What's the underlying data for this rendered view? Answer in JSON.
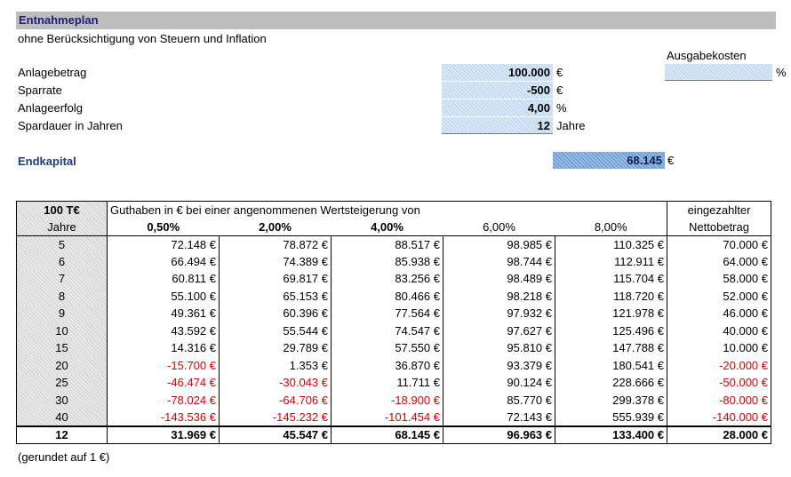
{
  "title": "Entnahmeplan",
  "subtitle": "ohne Berücksichtigung von Steuern und Inflation",
  "ausgabekosten": {
    "label": "Ausgabekosten",
    "value": "",
    "unit": "%"
  },
  "inputs": [
    {
      "label": "Anlagebetrag",
      "value": "100.000",
      "unit": "€"
    },
    {
      "label": "Sparrate",
      "value": "-500",
      "unit": "€"
    },
    {
      "label": "Anlageerfolg",
      "value": "4,00",
      "unit": "%"
    },
    {
      "label": "Spardauer in Jahren",
      "value": "12",
      "unit": "Jahre"
    }
  ],
  "endkapital": {
    "label": "Endkapital",
    "value": "68.145",
    "unit": "€"
  },
  "table": {
    "corner_top": "100 T€",
    "corner_bottom": "Jahre",
    "group_header": "Guthaben in € bei einer angenommenen Wertsteigerung von",
    "rates": [
      "0,50%",
      "2,00%",
      "4,00%",
      "6,00%",
      "8,00%"
    ],
    "net_header_1": "eingezahlter",
    "net_header_2": "Nettobetrag",
    "rows": [
      {
        "year": "5",
        "values": [
          "72.148 €",
          "78.872 €",
          "88.517 €",
          "98.985 €",
          "110.325 €"
        ],
        "neg": [
          false,
          false,
          false,
          false,
          false
        ],
        "net": "70.000 €",
        "net_neg": false
      },
      {
        "year": "6",
        "values": [
          "66.494 €",
          "74.389 €",
          "85.938 €",
          "98.744 €",
          "112.911 €"
        ],
        "neg": [
          false,
          false,
          false,
          false,
          false
        ],
        "net": "64.000 €",
        "net_neg": false
      },
      {
        "year": "7",
        "values": [
          "60.811 €",
          "69.817 €",
          "83.256 €",
          "98.489 €",
          "115.704 €"
        ],
        "neg": [
          false,
          false,
          false,
          false,
          false
        ],
        "net": "58.000 €",
        "net_neg": false
      },
      {
        "year": "8",
        "values": [
          "55.100 €",
          "65.153 €",
          "80.466 €",
          "98.218 €",
          "118.720 €"
        ],
        "neg": [
          false,
          false,
          false,
          false,
          false
        ],
        "net": "52.000 €",
        "net_neg": false
      },
      {
        "year": "9",
        "values": [
          "49.361 €",
          "60.396 €",
          "77.564 €",
          "97.932 €",
          "121.978 €"
        ],
        "neg": [
          false,
          false,
          false,
          false,
          false
        ],
        "net": "46.000 €",
        "net_neg": false
      },
      {
        "year": "10",
        "values": [
          "43.592 €",
          "55.544 €",
          "74.547 €",
          "97.627 €",
          "125.496 €"
        ],
        "neg": [
          false,
          false,
          false,
          false,
          false
        ],
        "net": "40.000 €",
        "net_neg": false
      },
      {
        "year": "15",
        "values": [
          "14.316 €",
          "29.789 €",
          "57.550 €",
          "95.810 €",
          "147.788 €"
        ],
        "neg": [
          false,
          false,
          false,
          false,
          false
        ],
        "net": "10.000 €",
        "net_neg": false
      },
      {
        "year": "20",
        "values": [
          "-15.700 €",
          "1.353 €",
          "36.870 €",
          "93.379 €",
          "180.541 €"
        ],
        "neg": [
          true,
          false,
          false,
          false,
          false
        ],
        "net": "-20.000 €",
        "net_neg": true
      },
      {
        "year": "25",
        "values": [
          "-46.474 €",
          "-30.043 €",
          "11.711 €",
          "90.124 €",
          "228.666 €"
        ],
        "neg": [
          true,
          true,
          false,
          false,
          false
        ],
        "net": "-50.000 €",
        "net_neg": true
      },
      {
        "year": "30",
        "values": [
          "-78.024 €",
          "-64.706 €",
          "-18.900 €",
          "85.770 €",
          "299.378 €"
        ],
        "neg": [
          true,
          true,
          true,
          false,
          false
        ],
        "net": "-80.000 €",
        "net_neg": true
      },
      {
        "year": "40",
        "values": [
          "-143.536 €",
          "-145.232 €",
          "-101.454 €",
          "72.143 €",
          "555.939 €"
        ],
        "neg": [
          true,
          true,
          true,
          false,
          false
        ],
        "net": "-140.000 €",
        "net_neg": true
      }
    ],
    "total": {
      "year": "12",
      "values": [
        "31.969 €",
        "45.547 €",
        "68.145 €",
        "96.963 €",
        "133.400 €"
      ],
      "net": "28.000 €"
    }
  },
  "footnote": "(gerundet auf 1 €)"
}
